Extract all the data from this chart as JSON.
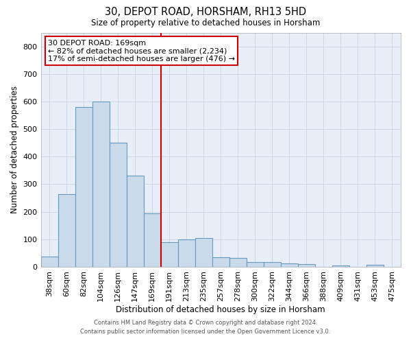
{
  "title": "30, DEPOT ROAD, HORSHAM, RH13 5HD",
  "subtitle": "Size of property relative to detached houses in Horsham",
  "xlabel": "Distribution of detached houses by size in Horsham",
  "ylabel": "Number of detached properties",
  "footer_line1": "Contains HM Land Registry data © Crown copyright and database right 2024.",
  "footer_line2": "Contains public sector information licensed under the Open Government Licence v3.0.",
  "annotation_title": "30 DEPOT ROAD: 169sqm",
  "annotation_line2": "← 82% of detached houses are smaller (2,234)",
  "annotation_line3": "17% of semi-detached houses are larger (476) →",
  "bar_color": "#c9daea",
  "bar_edge_color": "#6699bb",
  "vline_color": "#cc0000",
  "annotation_box_edge": "#cc0000",
  "grid_color": "#c8d4e4",
  "bg_color": "#e8eef8",
  "categories": [
    "38sqm",
    "60sqm",
    "82sqm",
    "104sqm",
    "126sqm",
    "147sqm",
    "169sqm",
    "191sqm",
    "213sqm",
    "235sqm",
    "257sqm",
    "278sqm",
    "300sqm",
    "322sqm",
    "344sqm",
    "366sqm",
    "388sqm",
    "409sqm",
    "431sqm",
    "453sqm",
    "475sqm"
  ],
  "values": [
    38,
    263,
    580,
    600,
    450,
    330,
    193,
    90,
    100,
    105,
    35,
    32,
    17,
    17,
    13,
    10,
    0,
    5,
    0,
    7,
    0
  ],
  "ylim": [
    0,
    850
  ],
  "yticks": [
    0,
    100,
    200,
    300,
    400,
    500,
    600,
    700,
    800
  ],
  "vline_x_index": 6.5,
  "figsize": [
    6.0,
    5.0
  ],
  "dpi": 100
}
